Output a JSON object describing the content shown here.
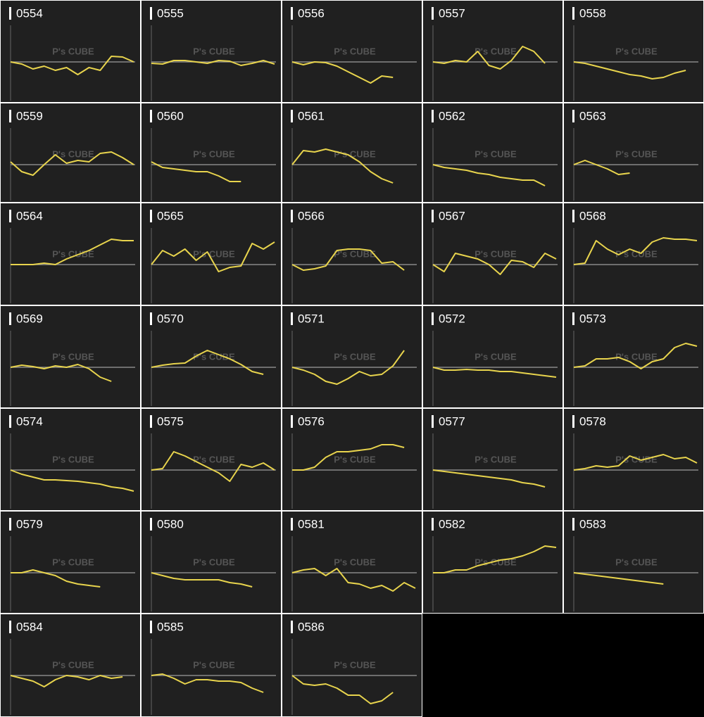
{
  "watermark": "P's CUBE",
  "chart_data": [
    {
      "type": "line",
      "title": "0554",
      "values": [
        0,
        -3,
        -10,
        -6,
        -12,
        -8,
        -18,
        -8,
        -12,
        8,
        7,
        0
      ],
      "ylim": [
        -50,
        50
      ],
      "yticks": [
        0
      ],
      "color": "#e8d44d"
    },
    {
      "type": "line",
      "title": "0555",
      "values": [
        -2,
        -3,
        2,
        2,
        0,
        -2,
        2,
        1,
        -5,
        -2,
        2,
        -3
      ],
      "ylim": [
        -50,
        50
      ],
      "yticks": [
        0
      ],
      "color": "#e8d44d"
    },
    {
      "type": "line",
      "title": "0556",
      "values": [
        0,
        -4,
        0,
        -1,
        -6,
        -14,
        -22,
        -30,
        -20,
        -22,
        null,
        null
      ],
      "ylim": [
        -50,
        50
      ],
      "yticks": [
        0
      ],
      "color": "#e8d44d"
    },
    {
      "type": "line",
      "title": "0557",
      "values": [
        0,
        -2,
        2,
        0,
        15,
        -5,
        -10,
        2,
        22,
        15,
        -2,
        null
      ],
      "ylim": [
        -50,
        50
      ],
      "yticks": [
        0
      ],
      "color": "#e8d44d"
    },
    {
      "type": "line",
      "title": "0558",
      "values": [
        0,
        -2,
        -6,
        -10,
        -14,
        -18,
        -20,
        -24,
        -22,
        -16,
        -12,
        null
      ],
      "ylim": [
        -50,
        50
      ],
      "yticks": [
        0
      ],
      "color": "#e8d44d"
    },
    {
      "type": "line",
      "title": "0559",
      "values": [
        4,
        -10,
        -15,
        0,
        14,
        2,
        6,
        4,
        16,
        18,
        10,
        0
      ],
      "ylim": [
        -50,
        50
      ],
      "yticks": [
        0
      ],
      "color": "#e8d44d"
    },
    {
      "type": "line",
      "title": "0560",
      "values": [
        4,
        -4,
        -6,
        -8,
        -10,
        -10,
        -16,
        -24,
        -24,
        null,
        null,
        null
      ],
      "ylim": [
        -50,
        50
      ],
      "yticks": [
        0
      ],
      "color": "#e8d44d"
    },
    {
      "type": "line",
      "title": "0561",
      "values": [
        0,
        20,
        18,
        22,
        18,
        14,
        4,
        -10,
        -20,
        -26,
        null,
        null
      ],
      "ylim": [
        -50,
        50
      ],
      "yticks": [
        0
      ],
      "color": "#e8d44d"
    },
    {
      "type": "line",
      "title": "0562",
      "values": [
        0,
        -4,
        -6,
        -8,
        -12,
        -14,
        -18,
        -20,
        -22,
        -22,
        -30,
        null
      ],
      "ylim": [
        -50,
        50
      ],
      "yticks": [
        0
      ],
      "color": "#e8d44d"
    },
    {
      "type": "line",
      "title": "0563",
      "values": [
        0,
        6,
        0,
        -6,
        -14,
        -12,
        null,
        null,
        null,
        null,
        null,
        null
      ],
      "ylim": [
        -50,
        50
      ],
      "yticks": [
        0
      ],
      "color": "#e8d44d"
    },
    {
      "type": "line",
      "title": "0564",
      "values": [
        0,
        0,
        0,
        2,
        0,
        8,
        14,
        20,
        28,
        36,
        34,
        34
      ],
      "ylim": [
        -50,
        50
      ],
      "yticks": [
        0
      ],
      "color": "#e8d44d"
    },
    {
      "type": "line",
      "title": "0565",
      "values": [
        0,
        20,
        12,
        22,
        6,
        18,
        -10,
        -4,
        -2,
        30,
        22,
        32
      ],
      "ylim": [
        -50,
        50
      ],
      "yticks": [
        0
      ],
      "color": "#e8d44d"
    },
    {
      "type": "line",
      "title": "0566",
      "values": [
        0,
        -8,
        -6,
        -2,
        20,
        22,
        22,
        20,
        2,
        4,
        -8,
        null
      ],
      "ylim": [
        -50,
        50
      ],
      "yticks": [
        0
      ],
      "color": "#e8d44d"
    },
    {
      "type": "line",
      "title": "0567",
      "values": [
        0,
        -10,
        16,
        12,
        8,
        0,
        -14,
        6,
        4,
        -4,
        16,
        8
      ],
      "ylim": [
        -50,
        50
      ],
      "yticks": [
        0
      ],
      "color": "#e8d44d"
    },
    {
      "type": "line",
      "title": "0568",
      "values": [
        0,
        2,
        34,
        22,
        14,
        22,
        16,
        32,
        38,
        36,
        36,
        34
      ],
      "ylim": [
        -50,
        50
      ],
      "yticks": [
        0
      ],
      "color": "#e8d44d"
    },
    {
      "type": "line",
      "title": "0569",
      "values": [
        0,
        3,
        1,
        -2,
        2,
        0,
        4,
        -2,
        -14,
        -20,
        null,
        null
      ],
      "ylim": [
        -50,
        50
      ],
      "yticks": [
        0
      ],
      "color": "#e8d44d"
    },
    {
      "type": "line",
      "title": "0570",
      "values": [
        0,
        3,
        5,
        6,
        16,
        24,
        18,
        12,
        4,
        -6,
        -10,
        null
      ],
      "ylim": [
        -50,
        50
      ],
      "yticks": [
        0
      ],
      "color": "#e8d44d"
    },
    {
      "type": "line",
      "title": "0571",
      "values": [
        0,
        -4,
        -10,
        -20,
        -24,
        -16,
        -6,
        -12,
        -10,
        2,
        24,
        null
      ],
      "ylim": [
        -50,
        50
      ],
      "yticks": [
        0
      ],
      "color": "#e8d44d"
    },
    {
      "type": "line",
      "title": "0572",
      "values": [
        0,
        -4,
        -4,
        -3,
        -4,
        -4,
        -6,
        -6,
        -8,
        -10,
        -12,
        -14
      ],
      "ylim": [
        -50,
        50
      ],
      "yticks": [
        0
      ],
      "color": "#e8d44d"
    },
    {
      "type": "line",
      "title": "0573",
      "values": [
        0,
        2,
        12,
        12,
        14,
        8,
        -2,
        8,
        12,
        28,
        34,
        30
      ],
      "ylim": [
        -50,
        50
      ],
      "yticks": [
        0
      ],
      "color": "#e8d44d"
    },
    {
      "type": "line",
      "title": "0574",
      "values": [
        0,
        -6,
        -10,
        -14,
        -14,
        -15,
        -16,
        -18,
        -20,
        -24,
        -26,
        -30
      ],
      "ylim": [
        -50,
        50
      ],
      "yticks": [
        0
      ],
      "color": "#e8d44d"
    },
    {
      "type": "line",
      "title": "0575",
      "values": [
        0,
        2,
        26,
        20,
        12,
        4,
        -4,
        -16,
        8,
        4,
        10,
        0
      ],
      "ylim": [
        -50,
        50
      ],
      "yticks": [
        0
      ],
      "color": "#e8d44d"
    },
    {
      "type": "line",
      "title": "0576",
      "values": [
        0,
        0,
        4,
        18,
        26,
        26,
        28,
        30,
        36,
        36,
        32,
        null
      ],
      "ylim": [
        -50,
        50
      ],
      "yticks": [
        0
      ],
      "color": "#e8d44d"
    },
    {
      "type": "line",
      "title": "0577",
      "values": [
        0,
        -2,
        -4,
        -6,
        -8,
        -10,
        -12,
        -14,
        -18,
        -20,
        -24,
        null
      ],
      "ylim": [
        -50,
        50
      ],
      "yticks": [
        0
      ],
      "color": "#e8d44d"
    },
    {
      "type": "line",
      "title": "0578",
      "values": [
        0,
        2,
        6,
        4,
        6,
        20,
        14,
        18,
        22,
        16,
        18,
        10
      ],
      "ylim": [
        -50,
        50
      ],
      "yticks": [
        0
      ],
      "color": "#e8d44d"
    },
    {
      "type": "line",
      "title": "0579",
      "values": [
        0,
        0,
        4,
        0,
        -4,
        -12,
        -16,
        -18,
        -20,
        null,
        null,
        null
      ],
      "ylim": [
        -50,
        50
      ],
      "yticks": [
        0
      ],
      "color": "#e8d44d"
    },
    {
      "type": "line",
      "title": "0580",
      "values": [
        0,
        -4,
        -8,
        -10,
        -10,
        -10,
        -10,
        -14,
        -16,
        -20,
        null,
        null
      ],
      "ylim": [
        -50,
        50
      ],
      "yticks": [
        0
      ],
      "color": "#e8d44d"
    },
    {
      "type": "line",
      "title": "0581",
      "values": [
        0,
        4,
        6,
        -4,
        6,
        -14,
        -16,
        -22,
        -18,
        -26,
        -14,
        -22
      ],
      "ylim": [
        -50,
        50
      ],
      "yticks": [
        0
      ],
      "color": "#e8d44d"
    },
    {
      "type": "line",
      "title": "0582",
      "values": [
        0,
        0,
        4,
        4,
        10,
        14,
        18,
        20,
        24,
        30,
        38,
        36
      ],
      "ylim": [
        -50,
        50
      ],
      "yticks": [
        0
      ],
      "color": "#e8d44d"
    },
    {
      "type": "line",
      "title": "0583",
      "values": [
        0,
        -2,
        -4,
        -6,
        -8,
        -10,
        -12,
        -14,
        -16,
        null,
        null,
        null
      ],
      "ylim": [
        -50,
        50
      ],
      "yticks": [
        0
      ],
      "color": "#e8d44d"
    },
    {
      "type": "line",
      "title": "0584",
      "values": [
        0,
        -4,
        -8,
        -16,
        -6,
        0,
        -2,
        -6,
        0,
        -4,
        -2,
        null
      ],
      "ylim": [
        -50,
        50
      ],
      "yticks": [
        0
      ],
      "color": "#e8d44d"
    },
    {
      "type": "line",
      "title": "0585",
      "values": [
        0,
        2,
        -4,
        -12,
        -6,
        -6,
        -8,
        -8,
        -10,
        -18,
        -24,
        null
      ],
      "ylim": [
        -50,
        50
      ],
      "yticks": [
        0
      ],
      "color": "#e8d44d"
    },
    {
      "type": "line",
      "title": "0586",
      "values": [
        0,
        -12,
        -14,
        -12,
        -18,
        -28,
        -28,
        -40,
        -36,
        -24,
        null,
        null
      ],
      "ylim": [
        -50,
        50
      ],
      "yticks": [
        0
      ],
      "color": "#e8d44d"
    }
  ]
}
